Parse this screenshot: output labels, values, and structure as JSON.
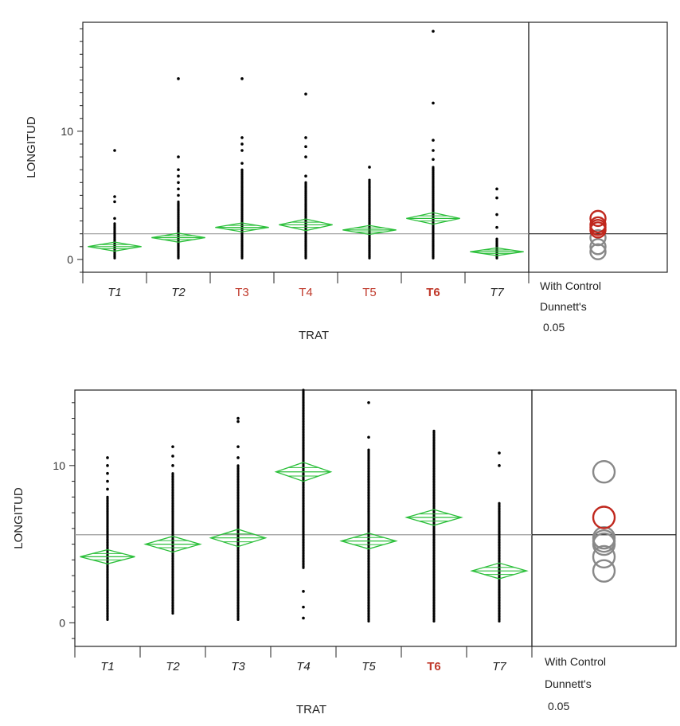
{
  "colors": {
    "diamond": "#2bbf3a",
    "point": "#000000",
    "significant_label": "#c0392b",
    "circle_significant": "#c0281e",
    "circle_other": "#888888",
    "grand_mean_line": "#999999",
    "frame": "#222222"
  },
  "chart_data": [
    {
      "type": "scatter",
      "title": "",
      "xlabel": "TRAT",
      "ylabel": "LONGITUD",
      "ylim": [
        -1,
        18.5
      ],
      "yticks": [
        0,
        10
      ],
      "categories": [
        "T1",
        "T2",
        "T3",
        "T4",
        "T5",
        "T6",
        "T7"
      ],
      "category_label_style": [
        "normal",
        "normal",
        "significant",
        "significant",
        "significant",
        "significant-bold",
        "normal"
      ],
      "grand_mean": 2.0,
      "means": [
        1.0,
        1.7,
        2.5,
        2.7,
        2.3,
        3.2,
        0.6
      ],
      "diamond_half_height": [
        0.35,
        0.35,
        0.35,
        0.45,
        0.35,
        0.45,
        0.3
      ],
      "point_ranges": [
        {
          "min": 0.1,
          "max": 2.8,
          "outliers": [
            3.2,
            4.5,
            4.9,
            8.5
          ]
        },
        {
          "min": 0.1,
          "max": 4.5,
          "outliers": [
            5.0,
            5.5,
            6.0,
            6.5,
            7.0,
            8.0,
            14.1
          ]
        },
        {
          "min": 0.1,
          "max": 7.0,
          "outliers": [
            7.5,
            8.5,
            9.0,
            9.5,
            14.1
          ]
        },
        {
          "min": 0.1,
          "max": 6.0,
          "outliers": [
            6.5,
            8.0,
            8.8,
            9.5,
            12.9
          ]
        },
        {
          "min": 0.1,
          "max": 6.2,
          "outliers": [
            7.2
          ]
        },
        {
          "min": 0.1,
          "max": 7.2,
          "outliers": [
            7.8,
            8.5,
            9.3,
            12.2,
            17.8
          ]
        },
        {
          "min": 0.1,
          "max": 1.6,
          "outliers": [
            2.5,
            3.5,
            4.8,
            5.5
          ]
        }
      ],
      "comparison_circles": [
        {
          "center": 3.2,
          "significant": true
        },
        {
          "center": 2.7,
          "significant": true
        },
        {
          "center": 2.5,
          "significant": true
        },
        {
          "center": 2.3,
          "significant": true
        },
        {
          "center": 1.7,
          "significant": false
        },
        {
          "center": 1.0,
          "significant": false
        },
        {
          "center": 0.6,
          "significant": false
        }
      ],
      "comparison_label": [
        "With Control",
        "Dunnett's",
        "0.05"
      ]
    },
    {
      "type": "scatter",
      "title": "",
      "xlabel": "TRAT",
      "ylabel": "LONGITUD",
      "ylim": [
        -1.5,
        14.8
      ],
      "yticks": [
        0,
        10
      ],
      "categories": [
        "T1",
        "T2",
        "T3",
        "T4",
        "T5",
        "T6",
        "T7"
      ],
      "category_label_style": [
        "normal",
        "normal",
        "normal",
        "normal",
        "normal",
        "significant-bold",
        "normal"
      ],
      "grand_mean": 5.6,
      "means": [
        4.2,
        5.0,
        5.4,
        9.6,
        5.2,
        6.7,
        3.3
      ],
      "diamond_half_height": [
        0.45,
        0.5,
        0.55,
        0.6,
        0.5,
        0.5,
        0.5
      ],
      "point_ranges": [
        {
          "min": 0.2,
          "max": 8.0,
          "outliers": [
            8.5,
            9.0,
            9.5,
            10.0,
            10.5
          ]
        },
        {
          "min": 0.6,
          "max": 9.5,
          "outliers": [
            10.0,
            10.6,
            11.2
          ]
        },
        {
          "min": 0.2,
          "max": 10.0,
          "outliers": [
            10.5,
            11.2,
            12.8,
            13.0
          ]
        },
        {
          "min": 3.5,
          "max": 14.8,
          "outliers": [
            0.3,
            1.0,
            2.0
          ]
        },
        {
          "min": 0.1,
          "max": 11.0,
          "outliers": [
            11.8,
            14.0
          ]
        },
        {
          "min": 0.1,
          "max": 12.2,
          "outliers": []
        },
        {
          "min": 0.1,
          "max": 7.6,
          "outliers": [
            10.0,
            10.8
          ]
        }
      ],
      "comparison_circles": [
        {
          "center": 9.6,
          "significant": false
        },
        {
          "center": 6.7,
          "significant": true
        },
        {
          "center": 5.4,
          "significant": false
        },
        {
          "center": 5.2,
          "significant": false
        },
        {
          "center": 5.0,
          "significant": false
        },
        {
          "center": 4.2,
          "significant": false
        },
        {
          "center": 3.3,
          "significant": false
        }
      ],
      "comparison_label": [
        "With Control",
        "Dunnett's",
        "0.05"
      ]
    }
  ]
}
